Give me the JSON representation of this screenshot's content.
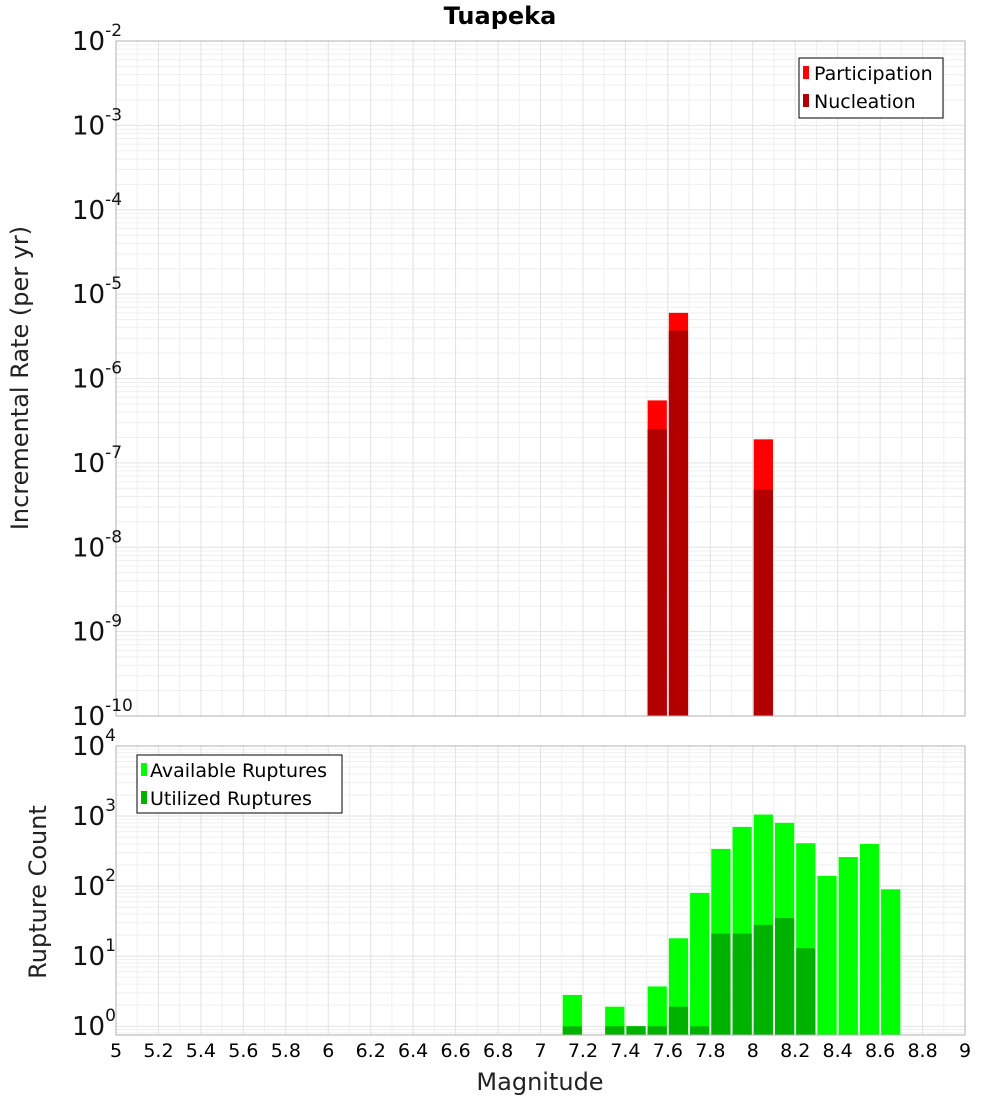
{
  "chart_data": [
    {
      "type": "bar",
      "title": "Tuapeka",
      "xlabel": "",
      "ylabel": "Incremental Rate (per yr)",
      "yscale": "log",
      "ylim": [
        1e-10,
        0.01
      ],
      "xlim": [
        5,
        9
      ],
      "bar_width": 0.1,
      "grid": true,
      "legend_position": "top-right",
      "y_tick_labels": [
        {
          "base": "10",
          "exp": "-10"
        },
        {
          "base": "10",
          "exp": "-9"
        },
        {
          "base": "10",
          "exp": "-8"
        },
        {
          "base": "10",
          "exp": "-7"
        },
        {
          "base": "10",
          "exp": "-6"
        },
        {
          "base": "10",
          "exp": "-5"
        },
        {
          "base": "10",
          "exp": "-4"
        },
        {
          "base": "10",
          "exp": "-3"
        },
        {
          "base": "10",
          "exp": "-2"
        }
      ],
      "series": [
        {
          "name": "Participation",
          "color": "#ff0000",
          "points": [
            {
              "x": 7.55,
              "y": 5.5e-07
            },
            {
              "x": 7.65,
              "y": 6e-06
            },
            {
              "x": 8.05,
              "y": 1.9e-07
            }
          ]
        },
        {
          "name": "Nucleation",
          "color": "#b20000",
          "points": [
            {
              "x": 7.55,
              "y": 2.5e-07
            },
            {
              "x": 7.65,
              "y": 3.7e-06
            },
            {
              "x": 8.05,
              "y": 4.8e-08
            }
          ]
        }
      ]
    },
    {
      "type": "bar",
      "title": "",
      "xlabel": "Magnitude",
      "ylabel": "Rupture Count",
      "yscale": "log",
      "ylim": [
        0.75,
        10000
      ],
      "xlim": [
        5,
        9
      ],
      "bar_width": 0.1,
      "grid": true,
      "legend_position": "top-left",
      "x_tick_labels": [
        "5",
        "5.2",
        "5.4",
        "5.6",
        "5.8",
        "6",
        "6.2",
        "6.4",
        "6.6",
        "6.8",
        "7",
        "7.2",
        "7.4",
        "7.6",
        "7.8",
        "8",
        "8.2",
        "8.4",
        "8.6",
        "8.8",
        "9"
      ],
      "y_tick_labels": [
        {
          "base": "10",
          "exp": "0"
        },
        {
          "base": "10",
          "exp": "1"
        },
        {
          "base": "10",
          "exp": "2"
        },
        {
          "base": "10",
          "exp": "3"
        },
        {
          "base": "10",
          "exp": "4"
        }
      ],
      "series": [
        {
          "name": "Available Ruptures",
          "color": "#00ff00",
          "points": [
            {
              "x": 7.15,
              "y": 2.8
            },
            {
              "x": 7.35,
              "y": 1.9
            },
            {
              "x": 7.45,
              "y": 1
            },
            {
              "x": 7.55,
              "y": 3.7
            },
            {
              "x": 7.65,
              "y": 18
            },
            {
              "x": 7.75,
              "y": 80
            },
            {
              "x": 7.85,
              "y": 340
            },
            {
              "x": 7.95,
              "y": 700
            },
            {
              "x": 8.05,
              "y": 1050
            },
            {
              "x": 8.15,
              "y": 800
            },
            {
              "x": 8.25,
              "y": 410
            },
            {
              "x": 8.35,
              "y": 140
            },
            {
              "x": 8.45,
              "y": 260
            },
            {
              "x": 8.55,
              "y": 400
            },
            {
              "x": 8.65,
              "y": 90
            }
          ]
        },
        {
          "name": "Utilized Ruptures",
          "color": "#00b200",
          "points": [
            {
              "x": 7.15,
              "y": 1
            },
            {
              "x": 7.35,
              "y": 1
            },
            {
              "x": 7.45,
              "y": 1
            },
            {
              "x": 7.55,
              "y": 1
            },
            {
              "x": 7.65,
              "y": 1.9
            },
            {
              "x": 7.75,
              "y": 1
            },
            {
              "x": 7.85,
              "y": 21
            },
            {
              "x": 7.95,
              "y": 21
            },
            {
              "x": 8.05,
              "y": 28
            },
            {
              "x": 8.15,
              "y": 35
            },
            {
              "x": 8.25,
              "y": 13
            }
          ]
        }
      ]
    }
  ]
}
